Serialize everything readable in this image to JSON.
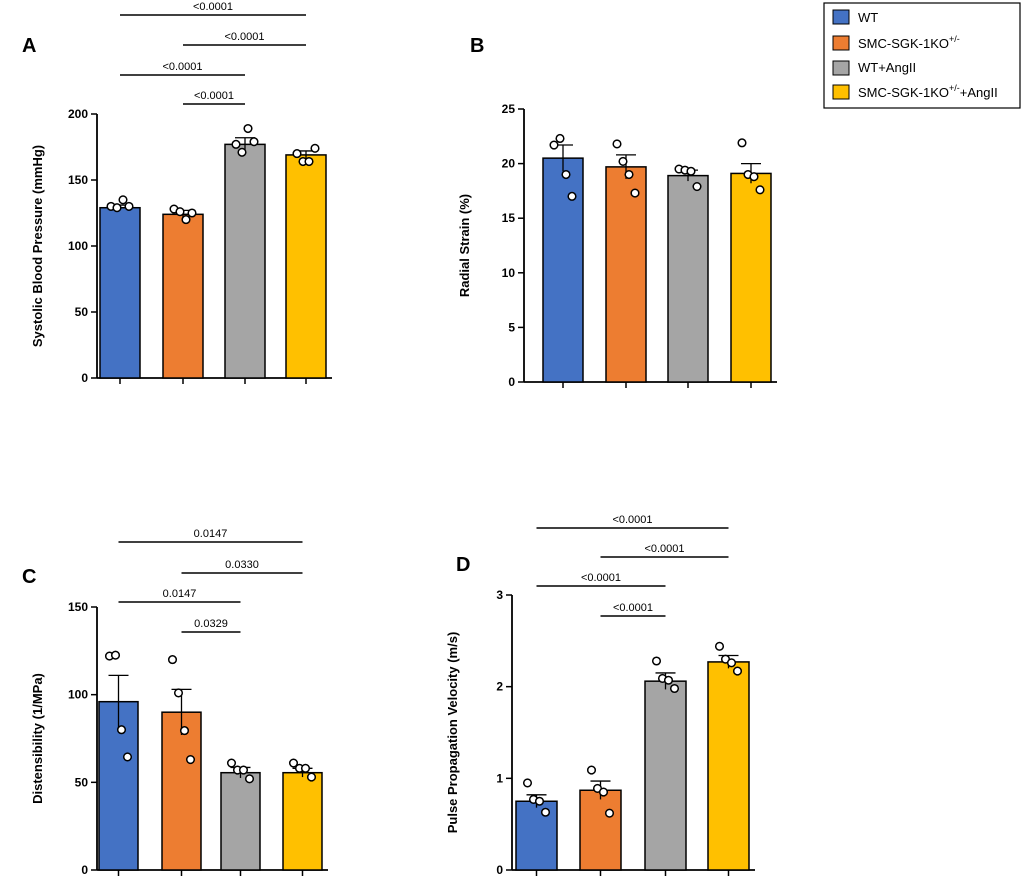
{
  "colors": {
    "WT": "#4472c4",
    "SMC-SGK-1KO+/-": "#ed7d31",
    "WT+AngII": "#a5a5a5",
    "SMC-SGK-1KO+/-+AngII": "#ffc000"
  },
  "legend": {
    "items": [
      {
        "key": "WT",
        "main": "WT",
        "sup": ""
      },
      {
        "key": "SMC-SGK-1KO+/-",
        "main": "SMC-SGK-1KO",
        "sup": "+/-"
      },
      {
        "key": "WT+AngII",
        "main": "WT+AngII",
        "sup": ""
      },
      {
        "key": "SMC-SGK-1KO+/-+AngII",
        "main": "SMC-SGK-1KO",
        "sup": "+/-",
        "suffix": "+AngII"
      }
    ]
  },
  "chart_data": [
    {
      "panel": "A",
      "type": "bar",
      "ylabel": "Systolic Blood Pressure (mmHg)",
      "ylim": [
        0,
        200
      ],
      "yticks": [
        0,
        50,
        100,
        150,
        200
      ],
      "categories": [
        "WT",
        "SMC-SGK-1KO+/-",
        "WT+AngII",
        "SMC-SGK-1KO+/-+AngII"
      ],
      "values": [
        129,
        124,
        177,
        169
      ],
      "sem": [
        2,
        3,
        5,
        3
      ],
      "points": [
        [
          130,
          129,
          135,
          130
        ],
        [
          128,
          126,
          120,
          125
        ],
        [
          177,
          171,
          189,
          179
        ],
        [
          170,
          164,
          164,
          174
        ]
      ],
      "comparisons": [
        {
          "from": 0,
          "to": 3,
          "label": "<0.0001"
        },
        {
          "from": 1,
          "to": 3,
          "label": "<0.0001"
        },
        {
          "from": 0,
          "to": 2,
          "label": "<0.0001"
        },
        {
          "from": 1,
          "to": 2,
          "label": "<0.0001"
        }
      ]
    },
    {
      "panel": "B",
      "type": "bar",
      "ylabel": "Radial Strain (%)",
      "ylim": [
        0,
        25
      ],
      "yticks": [
        0,
        5,
        10,
        15,
        20,
        25
      ],
      "categories": [
        "WT",
        "SMC-SGK-1KO+/-",
        "WT+AngII",
        "SMC-SGK-1KO+/-+AngII"
      ],
      "values": [
        20.5,
        19.7,
        18.9,
        19.1
      ],
      "sem": [
        1.2,
        1.1,
        0.5,
        0.9
      ],
      "points": [
        [
          21.7,
          22.3,
          19.0,
          17.0
        ],
        [
          21.8,
          20.2,
          19.0,
          17.3
        ],
        [
          19.5,
          19.4,
          19.3,
          17.9
        ],
        [
          21.9,
          19.0,
          18.8,
          17.6
        ]
      ],
      "comparisons": []
    },
    {
      "panel": "C",
      "type": "bar",
      "ylabel": "Distensibility (1/MPa)",
      "ylim": [
        0,
        150
      ],
      "yticks": [
        0,
        50,
        100,
        150
      ],
      "categories": [
        "WT",
        "SMC-SGK-1KO+/-",
        "WT+AngII",
        "SMC-SGK-1KO+/-+AngII"
      ],
      "values": [
        96,
        90,
        55.5,
        55.5
      ],
      "sem": [
        15,
        13,
        3,
        2.5
      ],
      "points": [
        [
          122,
          122.5,
          80,
          64.5
        ],
        [
          120,
          101,
          79.5,
          63
        ],
        [
          61,
          57,
          57,
          52
        ],
        [
          61,
          58,
          58,
          53
        ]
      ],
      "comparisons": [
        {
          "from": 0,
          "to": 3,
          "label": "0.0147"
        },
        {
          "from": 1,
          "to": 3,
          "label": "0.0330"
        },
        {
          "from": 0,
          "to": 2,
          "label": "0.0147"
        },
        {
          "from": 1,
          "to": 2,
          "label": "0.0329"
        }
      ]
    },
    {
      "panel": "D",
      "type": "bar",
      "ylabel": "Pulse Propagation Velocity (m/s)",
      "ylim": [
        0,
        3
      ],
      "yticks": [
        0,
        1,
        2,
        3
      ],
      "categories": [
        "WT",
        "SMC-SGK-1KO+/-",
        "WT+AngII",
        "SMC-SGK-1KO+/-+AngII"
      ],
      "values": [
        0.75,
        0.87,
        2.06,
        2.27
      ],
      "sem": [
        0.07,
        0.1,
        0.09,
        0.07
      ],
      "points": [
        [
          0.95,
          0.77,
          0.75,
          0.63
        ],
        [
          1.09,
          0.89,
          0.85,
          0.62
        ],
        [
          2.28,
          2.09,
          2.07,
          1.98
        ],
        [
          2.44,
          2.3,
          2.26,
          2.17
        ]
      ],
      "comparisons": [
        {
          "from": 0,
          "to": 3,
          "label": "<0.0001"
        },
        {
          "from": 1,
          "to": 3,
          "label": "<0.0001"
        },
        {
          "from": 0,
          "to": 2,
          "label": "<0.0001"
        },
        {
          "from": 1,
          "to": 2,
          "label": "<0.0001"
        }
      ]
    }
  ]
}
